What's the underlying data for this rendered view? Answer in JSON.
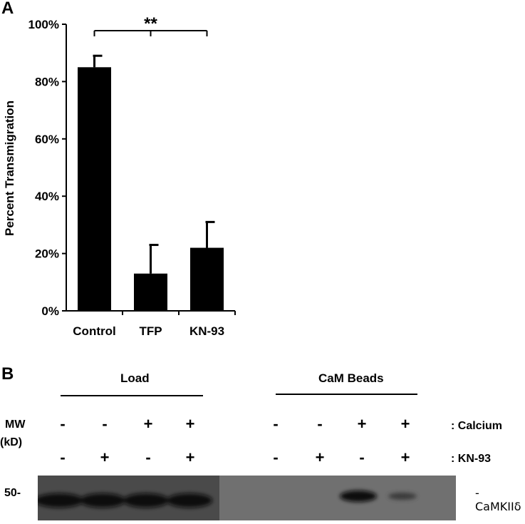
{
  "panel_a": {
    "label": "A"
  },
  "panel_b": {
    "label": "B"
  },
  "chart_data": {
    "type": "bar",
    "categories": [
      "Control",
      "TFP",
      "KN-93"
    ],
    "values": [
      85,
      13,
      22
    ],
    "errors": [
      4,
      10,
      9
    ],
    "ylabel": "Percent Transmigration",
    "xlabel": "",
    "ylim": [
      0,
      100
    ],
    "yticks": [
      "0%",
      "20%",
      "40%",
      "60%",
      "80%",
      "100%"
    ],
    "significance": "**",
    "bar_color": "#000000",
    "grid": false
  },
  "blot": {
    "load_label": "Load",
    "beads_label": "CaM Beads",
    "mw_label": "MW",
    "kd_label": "(kD)",
    "calcium_label": ": Calcium",
    "kn93_label": ": KN-93",
    "calcium_signs": [
      "-",
      "-",
      "+",
      "+",
      "-",
      "-",
      "+",
      "+"
    ],
    "kn93_signs": [
      "-",
      "+",
      "-",
      "+",
      "-",
      "+",
      "-",
      "+"
    ],
    "marker_label": "50-",
    "band_label": "-CaMKIIδ"
  }
}
